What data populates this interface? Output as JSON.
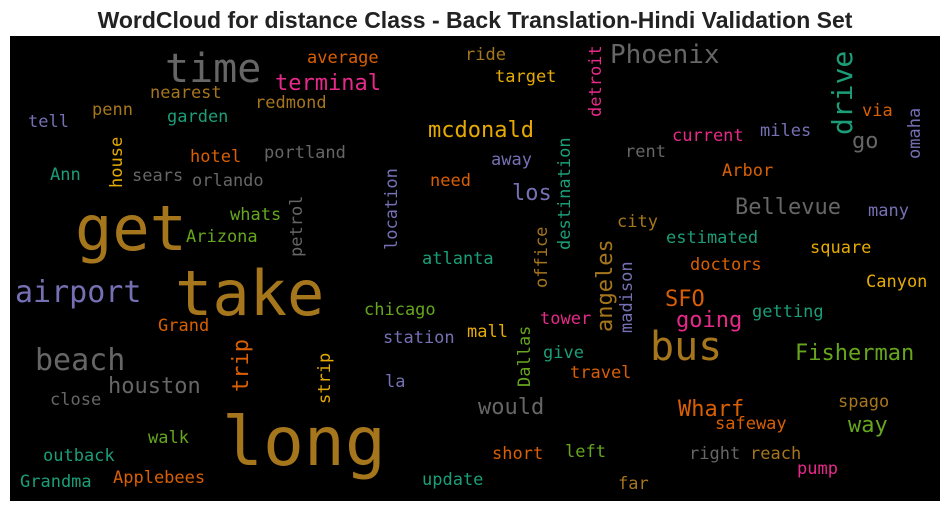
{
  "title": "WordCloud for distance Class - Back Translation-Hindi Validation Set",
  "words": [
    {
      "text": "time",
      "color": "#666666"
    },
    {
      "text": "get",
      "color": "#a6761d"
    },
    {
      "text": "take",
      "color": "#a6761d"
    },
    {
      "text": "long",
      "color": "#a6761d"
    },
    {
      "text": "airport",
      "color": "#7570b3"
    },
    {
      "text": "beach",
      "color": "#666666"
    },
    {
      "text": "bus",
      "color": "#a6761d"
    },
    {
      "text": "Phoenix",
      "color": "#666666"
    },
    {
      "text": "terminal",
      "color": "#e7298a"
    },
    {
      "text": "mcdonald",
      "color": "#e6ab02"
    },
    {
      "text": "drive",
      "color": "#1b9e77"
    },
    {
      "text": "houston",
      "color": "#666666"
    },
    {
      "text": "Bellevue",
      "color": "#666666"
    },
    {
      "text": "Fisherman",
      "color": "#66a61e"
    },
    {
      "text": "would",
      "color": "#666666"
    },
    {
      "text": "Wharf",
      "color": "#d95f02"
    },
    {
      "text": "going",
      "color": "#e7298a"
    },
    {
      "text": "SFO",
      "color": "#d95f02"
    },
    {
      "text": "way",
      "color": "#66a61e"
    },
    {
      "text": "los",
      "color": "#7570b3"
    },
    {
      "text": "angeles",
      "color": "#a6761d"
    },
    {
      "text": "go",
      "color": "#666666"
    },
    {
      "text": "average",
      "color": "#d95f02"
    },
    {
      "text": "ride",
      "color": "#a6761d"
    },
    {
      "text": "target",
      "color": "#e6ab02"
    },
    {
      "text": "nearest",
      "color": "#a6761d"
    },
    {
      "text": "penn",
      "color": "#a6761d"
    },
    {
      "text": "redmond",
      "color": "#a6761d"
    },
    {
      "text": "tell",
      "color": "#7570b3"
    },
    {
      "text": "garden",
      "color": "#1b9e77"
    },
    {
      "text": "house",
      "color": "#e6ab02"
    },
    {
      "text": "hotel",
      "color": "#d95f02"
    },
    {
      "text": "portland",
      "color": "#666666"
    },
    {
      "text": "Ann",
      "color": "#1b9e77"
    },
    {
      "text": "sears",
      "color": "#666666"
    },
    {
      "text": "orlando",
      "color": "#666666"
    },
    {
      "text": "whats",
      "color": "#66a61e"
    },
    {
      "text": "petrol",
      "color": "#666666"
    },
    {
      "text": "Arizona",
      "color": "#66a61e"
    },
    {
      "text": "location",
      "color": "#7570b3"
    },
    {
      "text": "destination",
      "color": "#1b9e77"
    },
    {
      "text": "detroit",
      "color": "#e7298a"
    },
    {
      "text": "current",
      "color": "#e7298a"
    },
    {
      "text": "miles",
      "color": "#7570b3"
    },
    {
      "text": "via",
      "color": "#d95f02"
    },
    {
      "text": "omaha",
      "color": "#7570b3"
    },
    {
      "text": "rent",
      "color": "#666666"
    },
    {
      "text": "away",
      "color": "#7570b3"
    },
    {
      "text": "need",
      "color": "#d95f02"
    },
    {
      "text": "Arbor",
      "color": "#d95f02"
    },
    {
      "text": "office",
      "color": "#a6761d"
    },
    {
      "text": "city",
      "color": "#a6761d"
    },
    {
      "text": "estimated",
      "color": "#1b9e77"
    },
    {
      "text": "many",
      "color": "#7570b3"
    },
    {
      "text": "square",
      "color": "#e6ab02"
    },
    {
      "text": "atlanta",
      "color": "#1b9e77"
    },
    {
      "text": "madison",
      "color": "#7570b3"
    },
    {
      "text": "doctors",
      "color": "#d95f02"
    },
    {
      "text": "Canyon",
      "color": "#e6ab02"
    },
    {
      "text": "chicago",
      "color": "#66a61e"
    },
    {
      "text": "getting",
      "color": "#1b9e77"
    },
    {
      "text": "tower",
      "color": "#e7298a"
    },
    {
      "text": "Grand",
      "color": "#d95f02"
    },
    {
      "text": "station",
      "color": "#7570b3"
    },
    {
      "text": "mall",
      "color": "#e6ab02"
    },
    {
      "text": "Dallas",
      "color": "#66a61e"
    },
    {
      "text": "trip",
      "color": "#d95f02"
    },
    {
      "text": "strip",
      "color": "#e6ab02"
    },
    {
      "text": "give",
      "color": "#1b9e77"
    },
    {
      "text": "travel",
      "color": "#d95f02"
    },
    {
      "text": "la",
      "color": "#7570b3"
    },
    {
      "text": "close",
      "color": "#666666"
    },
    {
      "text": "spago",
      "color": "#a6761d"
    },
    {
      "text": "safeway",
      "color": "#d95f02"
    },
    {
      "text": "walk",
      "color": "#66a61e"
    },
    {
      "text": "outback",
      "color": "#1b9e77"
    },
    {
      "text": "short",
      "color": "#d95f02"
    },
    {
      "text": "left",
      "color": "#66a61e"
    },
    {
      "text": "right",
      "color": "#666666"
    },
    {
      "text": "reach",
      "color": "#a6761d"
    },
    {
      "text": "pump",
      "color": "#e7298a"
    },
    {
      "text": "Applebees",
      "color": "#d95f02"
    },
    {
      "text": "update",
      "color": "#1b9e77"
    },
    {
      "text": "far",
      "color": "#a6761d"
    },
    {
      "text": "Grandma",
      "color": "#1b9e77"
    }
  ]
}
